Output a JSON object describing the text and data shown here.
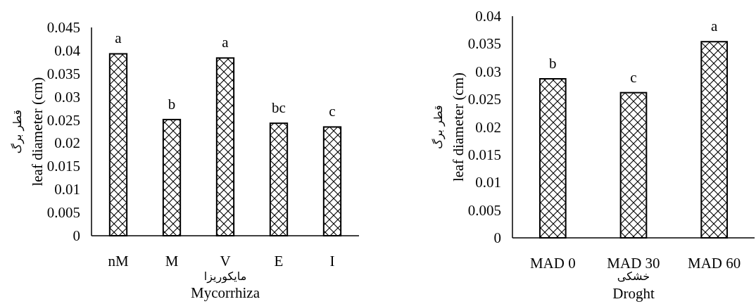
{
  "chart_data": [
    {
      "type": "bar",
      "categories": [
        "nM",
        "M",
        "V",
        "E",
        "I"
      ],
      "values": [
        0.0393,
        0.0251,
        0.0384,
        0.0243,
        0.0235
      ],
      "color": "#000000",
      "ylim": [
        0,
        0.045
      ],
      "yticks": [
        0,
        0.005,
        0.01,
        0.015,
        0.02,
        0.025,
        0.03,
        0.035,
        0.04,
        0.045
      ],
      "xlabel": "Mycorrhiza",
      "ylabel": "leaf diameter (cm)",
      "annotations": [
        {
          "text": "a",
          "x": "nM",
          "y": 0.0393
        },
        {
          "text": "b",
          "x": "M",
          "y": 0.0251
        },
        {
          "text": "a",
          "x": "V",
          "y": 0.0384
        },
        {
          "text": "bc",
          "x": "E",
          "y": 0.0243
        },
        {
          "text": "c",
          "x": "I",
          "y": 0.0235
        },
        "مایکوریزا",
        "قطر برگ"
      ]
    },
    {
      "type": "bar",
      "categories": [
        "MAD 0",
        "MAD 30",
        "MAD 60"
      ],
      "values": [
        0.0287,
        0.0262,
        0.0354
      ],
      "color": "#000000",
      "ylim": [
        0,
        0.04
      ],
      "yticks": [
        0,
        0.005,
        0.01,
        0.015,
        0.02,
        0.025,
        0.03,
        0.035,
        0.04
      ],
      "xlabel": "Droght",
      "ylabel": "leaf diameter (cm)",
      "annotations": [
        {
          "text": "b",
          "x": "MAD 0",
          "y": 0.0287
        },
        {
          "text": "c",
          "x": "MAD 30",
          "y": 0.0262
        },
        {
          "text": "a",
          "x": "MAD 60",
          "y": 0.0354
        },
        "خشکی",
        "قطر برگ"
      ]
    }
  ]
}
